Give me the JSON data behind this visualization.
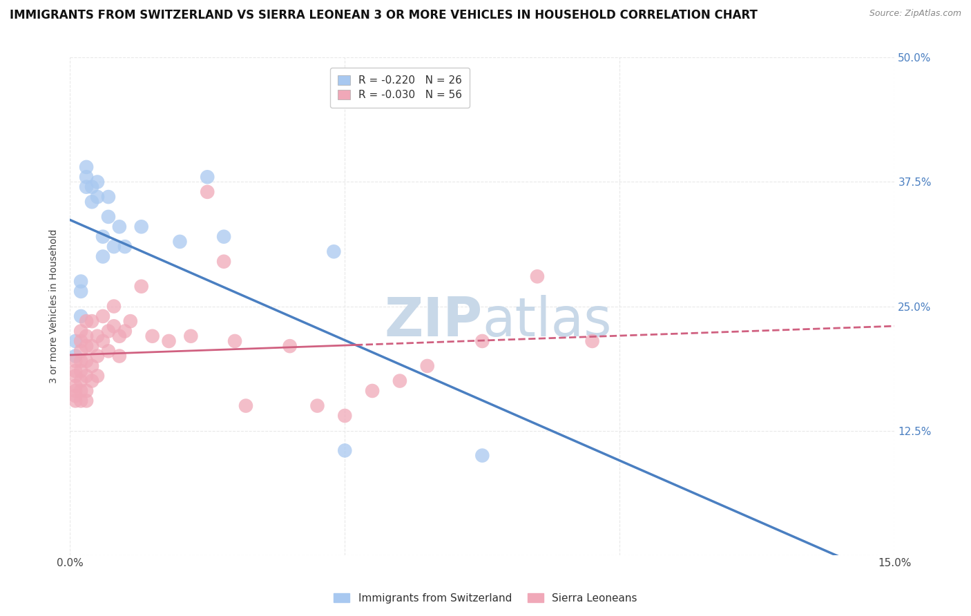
{
  "title": "IMMIGRANTS FROM SWITZERLAND VS SIERRA LEONEAN 3 OR MORE VEHICLES IN HOUSEHOLD CORRELATION CHART",
  "source": "Source: ZipAtlas.com",
  "ylabel": "3 or more Vehicles in Household",
  "xlim": [
    0.0,
    0.15
  ],
  "ylim": [
    0.0,
    0.5
  ],
  "xticks": [
    0.0,
    0.05,
    0.1,
    0.15
  ],
  "xticklabels": [
    "0.0%",
    "",
    "",
    "15.0%"
  ],
  "yticks": [
    0.0,
    0.125,
    0.25,
    0.375,
    0.5
  ],
  "yticklabels": [
    "",
    "12.5%",
    "25.0%",
    "37.5%",
    "50.0%"
  ],
  "swiss_R": -0.22,
  "swiss_N": 26,
  "sierra_R": -0.03,
  "sierra_N": 56,
  "swiss_color": "#a8c8f0",
  "sierra_color": "#f0a8b8",
  "swiss_line_color": "#4a7fc1",
  "sierra_line_color": "#d06080",
  "watermark_zip": "ZIP",
  "watermark_atlas": "atlas",
  "watermark_color": "#c8d8e8",
  "swiss_points_x": [
    0.001,
    0.001,
    0.002,
    0.002,
    0.002,
    0.003,
    0.003,
    0.003,
    0.004,
    0.004,
    0.005,
    0.005,
    0.006,
    0.006,
    0.007,
    0.007,
    0.008,
    0.009,
    0.01,
    0.013,
    0.02,
    0.025,
    0.028,
    0.048,
    0.05,
    0.075
  ],
  "swiss_points_y": [
    0.2,
    0.215,
    0.24,
    0.265,
    0.275,
    0.37,
    0.38,
    0.39,
    0.355,
    0.37,
    0.36,
    0.375,
    0.3,
    0.32,
    0.34,
    0.36,
    0.31,
    0.33,
    0.31,
    0.33,
    0.315,
    0.38,
    0.32,
    0.305,
    0.105,
    0.1
  ],
  "sierra_points_x": [
    0.001,
    0.001,
    0.001,
    0.001,
    0.001,
    0.001,
    0.001,
    0.002,
    0.002,
    0.002,
    0.002,
    0.002,
    0.002,
    0.002,
    0.002,
    0.003,
    0.003,
    0.003,
    0.003,
    0.003,
    0.003,
    0.003,
    0.004,
    0.004,
    0.004,
    0.004,
    0.005,
    0.005,
    0.005,
    0.006,
    0.006,
    0.007,
    0.007,
    0.008,
    0.008,
    0.009,
    0.009,
    0.01,
    0.011,
    0.013,
    0.015,
    0.018,
    0.022,
    0.025,
    0.028,
    0.03,
    0.032,
    0.04,
    0.045,
    0.05,
    0.055,
    0.06,
    0.065,
    0.075,
    0.085,
    0.095
  ],
  "sierra_points_y": [
    0.155,
    0.16,
    0.165,
    0.17,
    0.18,
    0.185,
    0.195,
    0.155,
    0.165,
    0.175,
    0.185,
    0.195,
    0.205,
    0.215,
    0.225,
    0.155,
    0.165,
    0.18,
    0.195,
    0.21,
    0.22,
    0.235,
    0.175,
    0.19,
    0.21,
    0.235,
    0.18,
    0.2,
    0.22,
    0.215,
    0.24,
    0.205,
    0.225,
    0.23,
    0.25,
    0.2,
    0.22,
    0.225,
    0.235,
    0.27,
    0.22,
    0.215,
    0.22,
    0.365,
    0.295,
    0.215,
    0.15,
    0.21,
    0.15,
    0.14,
    0.165,
    0.175,
    0.19,
    0.215,
    0.28,
    0.215
  ],
  "grid_color": "#e8e8e8",
  "background_color": "#ffffff",
  "title_fontsize": 12,
  "axis_label_fontsize": 10,
  "tick_fontsize": 11,
  "legend_fontsize": 11
}
